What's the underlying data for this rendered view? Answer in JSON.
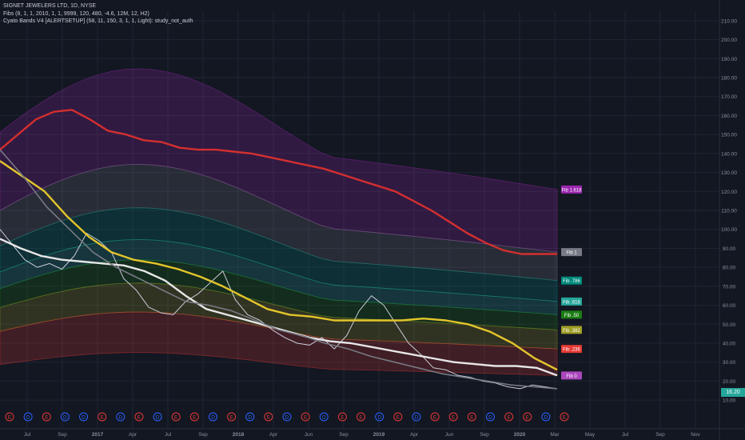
{
  "legend": {
    "title": "SIGNET JEWELERS LTD, 1D, NYSE",
    "fibs": "Fibs (8, 1, 1, 2010, 1, 1, 9999, 120, 480, -4.6, 12M, 12, H2)",
    "cyato": "Cyato Bands V4 [ALERTSETUP] (58, 11, 150, 3, 1, 1, Light): study_not_auth"
  },
  "last_price": "16.20",
  "colors": {
    "background": "#131722",
    "grid": "#1f2433",
    "axis_text": "#8a8f9c",
    "price_line": "#c9ccd6",
    "red_ma": "#d32f2f",
    "yellow_ma": "#e3c52b",
    "white_ma": "#e6e6e6",
    "gray_ma": "#777a83",
    "last_price_bg": "#26a69a"
  },
  "chart_data": {
    "type": "line",
    "ylim": [
      5,
      215
    ],
    "y_ticks": [
      "210.00",
      "200.00",
      "190.00",
      "180.00",
      "170.00",
      "160.00",
      "150.00",
      "140.00",
      "130.00",
      "120.00",
      "110.00",
      "100.00",
      "90.00",
      "80.00",
      "70.00",
      "60.00",
      "50.00",
      "40.00",
      "30.00",
      "20.00",
      "10.00"
    ],
    "x_ticks": [
      "Jul",
      "Sep",
      "2017",
      "Apr",
      "Jul",
      "Sep",
      "2018",
      "Apr",
      "Jun",
      "Sep",
      "2019",
      "Apr",
      "Jun",
      "Sep",
      "2020",
      "Mar",
      "May",
      "Jul",
      "Sep",
      "Nov"
    ],
    "fib_levels": [
      {
        "label": "Fib 1.618",
        "value": 121,
        "color": "#9c27b0"
      },
      {
        "label": "Fib 1",
        "value": 88,
        "color": "#787b86"
      },
      {
        "label": "Fib .786",
        "value": 73,
        "color": "#00897b"
      },
      {
        "label": "Fib .618",
        "value": 62,
        "color": "#26a69a"
      },
      {
        "label": "Fib .50",
        "value": 55,
        "color": "#1b7d14"
      },
      {
        "label": "Fib .382",
        "value": 47,
        "color": "#9e9d24"
      },
      {
        "label": "Fib .236",
        "value": 37,
        "color": "#e53935"
      },
      {
        "label": "Fib 0",
        "value": 23,
        "color": "#ab47bc"
      }
    ],
    "event_markers": [
      "E",
      "D",
      "E",
      "D",
      "D",
      "E",
      "D",
      "E",
      "D",
      "E",
      "E",
      "D",
      "E",
      "D",
      "E",
      "D",
      "E",
      "D",
      "E",
      "E",
      "D",
      "E",
      "D",
      "E",
      "E",
      "E",
      "D",
      "E",
      "E",
      "D",
      "E"
    ],
    "series": [
      {
        "name": "",
        "values": [
          100,
          92,
          84,
          80,
          82,
          79,
          86,
          98,
          94,
          88,
          74,
          68,
          59,
          56,
          55,
          62,
          66,
          72,
          78,
          63,
          55,
          52,
          47,
          43,
          40,
          39,
          43,
          37,
          44,
          57,
          65,
          60,
          50,
          40,
          34,
          27,
          26,
          23,
          22,
          20,
          19,
          17,
          16,
          18,
          17,
          16
        ]
      },
      {
        "name": "",
        "values": [
          142,
          150,
          158,
          162,
          163,
          158,
          152,
          150,
          147,
          146,
          143,
          142,
          142,
          141,
          140,
          138,
          136,
          134,
          132,
          129,
          126,
          123,
          120,
          115,
          110,
          104,
          98,
          93,
          89,
          87,
          87,
          87
        ]
      },
      {
        "name": "",
        "values": [
          136,
          128,
          120,
          107,
          96,
          88,
          84,
          82,
          79,
          75,
          70,
          64,
          58,
          55,
          54,
          52,
          52,
          52,
          52,
          53,
          52,
          50,
          46,
          40,
          32,
          26
        ]
      },
      {
        "name": "",
        "values": [
          95,
          90,
          86,
          84,
          83,
          82,
          81,
          78,
          73,
          65,
          58,
          55,
          52,
          49,
          46,
          43,
          41,
          40,
          38,
          36,
          34,
          32,
          30,
          29,
          28,
          28,
          27,
          23
        ]
      },
      {
        "name": "",
        "values": [
          142,
          128,
          112,
          100,
          88,
          80,
          74,
          68,
          62,
          60,
          57,
          52,
          47,
          44,
          40,
          37,
          33,
          30,
          27,
          24,
          22,
          20,
          18,
          17,
          16
        ]
      }
    ]
  }
}
